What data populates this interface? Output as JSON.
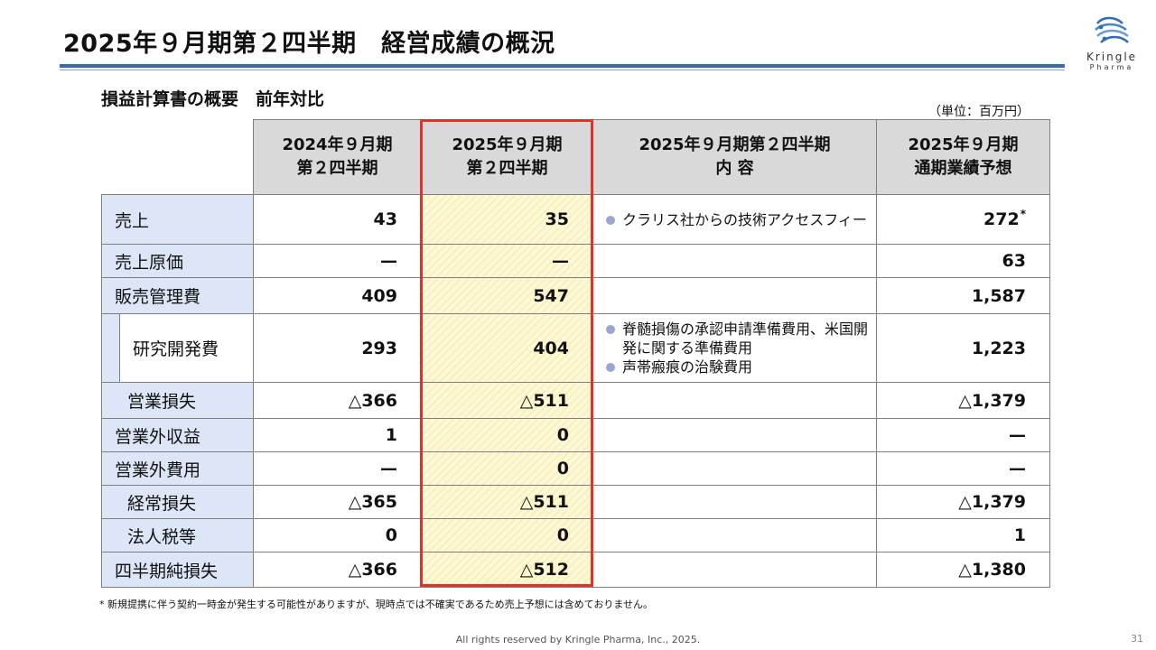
{
  "slide": {
    "title": "2025年９月期第２四半期　経営成績の概況",
    "subtitle": "損益計算書の概要　前年対比",
    "unit": "（単位：百万円）",
    "logo": {
      "name": "Kringle",
      "sub": "Pharma"
    }
  },
  "table": {
    "headers": [
      {
        "line1": "2024年９月期",
        "line2": "第２四半期"
      },
      {
        "line1": "2025年９月期",
        "line2": "第２四半期"
      },
      {
        "line1": "2025年９月期第２四半期",
        "line2": "内 容"
      },
      {
        "line1": "2025年９月期",
        "line2": "通期業績予想"
      }
    ],
    "rows": [
      {
        "label": "売上",
        "prev": "43",
        "curr": "35",
        "notes": [
          "クラリス社からの技術アクセスフィー"
        ],
        "forecast": "272",
        "forecast_mark": "*"
      },
      {
        "label": "売上原価",
        "prev": "—",
        "curr": "—",
        "notes": [],
        "forecast": "63",
        "forecast_mark": ""
      },
      {
        "label": "販売管理費",
        "prev": "409",
        "curr": "547",
        "notes": [],
        "forecast": "1,587",
        "forecast_mark": ""
      },
      {
        "label": "研究開発費",
        "prev": "293",
        "curr": "404",
        "notes": [
          "脊髄損傷の承認申請準備費用、米国開発に関する準備費用",
          "声帯瘢痕の治験費用"
        ],
        "forecast": "1,223",
        "forecast_mark": ""
      },
      {
        "label": "営業損失",
        "prev": "△366",
        "curr": "△511",
        "notes": [],
        "forecast": "△1,379",
        "forecast_mark": ""
      },
      {
        "label": "営業外収益",
        "prev": "1",
        "curr": "0",
        "notes": [],
        "forecast": "—",
        "forecast_mark": ""
      },
      {
        "label": "営業外費用",
        "prev": "—",
        "curr": "0",
        "notes": [],
        "forecast": "—",
        "forecast_mark": ""
      },
      {
        "label": "経常損失",
        "prev": "△365",
        "curr": "△511",
        "notes": [],
        "forecast": "△1,379",
        "forecast_mark": ""
      },
      {
        "label": "法人税等",
        "prev": "0",
        "curr": "0",
        "notes": [],
        "forecast": "1",
        "forecast_mark": ""
      },
      {
        "label": "四半期純損失",
        "prev": "△366",
        "curr": "△512",
        "notes": [],
        "forecast": "△1,380",
        "forecast_mark": ""
      }
    ]
  },
  "footnote": "* 新規提携に伴う契約一時金が発生する可能性がありますが、現時点では不確実であるため売上予想には含めておりません。",
  "copyright": "All rights reserved by Kringle Pharma, Inc., 2025.",
  "page_number": "31",
  "colors": {
    "accent_blue": "#2f6db5",
    "label_bg": "#dce6f7",
    "header_bg": "#d9d9d9",
    "highlight_bg": "#fdf8d4",
    "highlight_border": "#e0312b",
    "bullet": "#9aa6cf"
  }
}
